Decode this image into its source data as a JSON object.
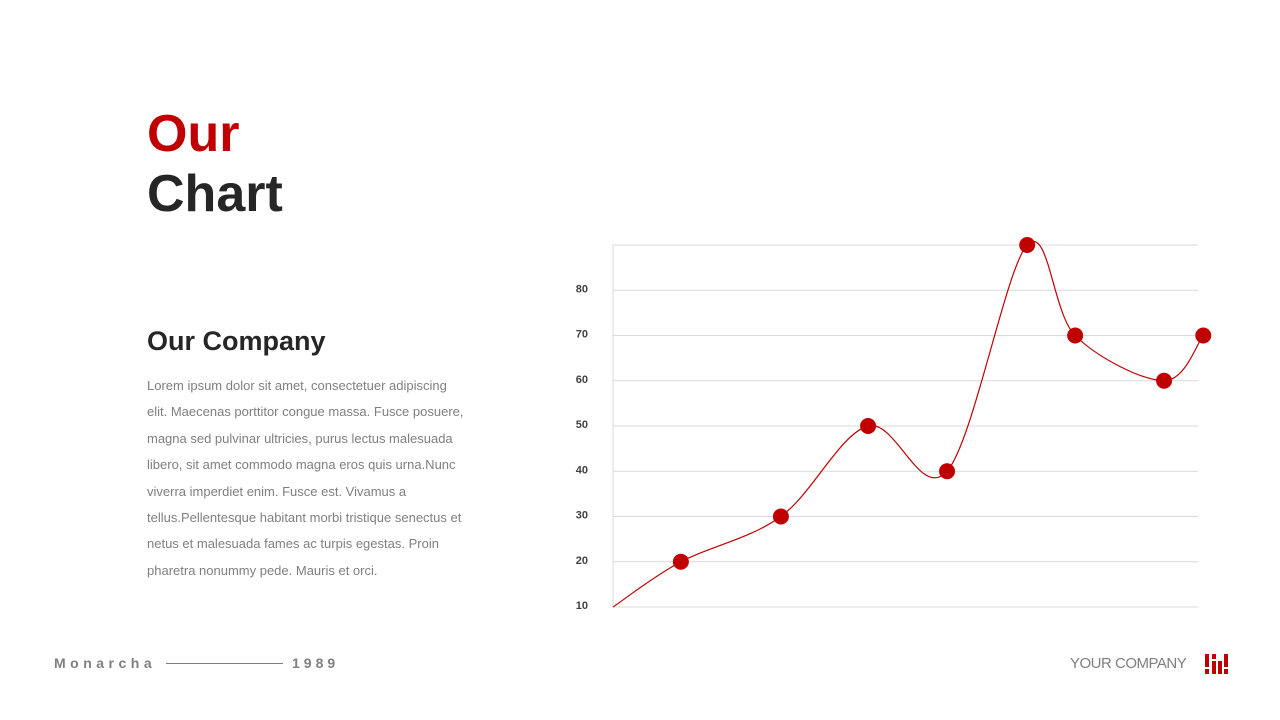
{
  "title": {
    "line1": "Our",
    "line2": "Chart"
  },
  "section": {
    "heading": "Our Company",
    "body": "Lorem ipsum dolor sit amet, consectetuer adipiscing elit. Maecenas porttitor congue massa. Fusce posuere, magna sed pulvinar ultricies, purus lectus malesuada libero, sit amet commodo magna eros quis urna.Nunc viverra imperdiet enim. Fusce est. Vivamus a tellus.Pellentesque habitant morbi tristique senectus et netus et malesuada fames ac turpis egestas. Proin pharetra nonummy pede. Mauris et orci."
  },
  "footer": {
    "brand": "Monarcha",
    "year": "1989",
    "company": "YOUR COMPANY"
  },
  "colors": {
    "accent": "#c00000",
    "text": "#262626",
    "muted": "#7f7f7f",
    "grid": "#d9d9d9"
  },
  "chart_data": {
    "type": "line",
    "smooth": true,
    "markers": true,
    "x": [
      0,
      1.16,
      2.87,
      4.36,
      5.71,
      7.08,
      7.9,
      9.42,
      10.09
    ],
    "values": [
      10,
      20,
      30,
      50,
      40,
      90,
      70,
      60,
      70
    ],
    "xlim": [
      0,
      10
    ],
    "ylim": [
      10,
      90
    ],
    "yticks": [
      10,
      20,
      30,
      40,
      50,
      60,
      70,
      80
    ],
    "grid": true,
    "color": "#c00000",
    "title": "",
    "xlabel": "",
    "ylabel": ""
  }
}
